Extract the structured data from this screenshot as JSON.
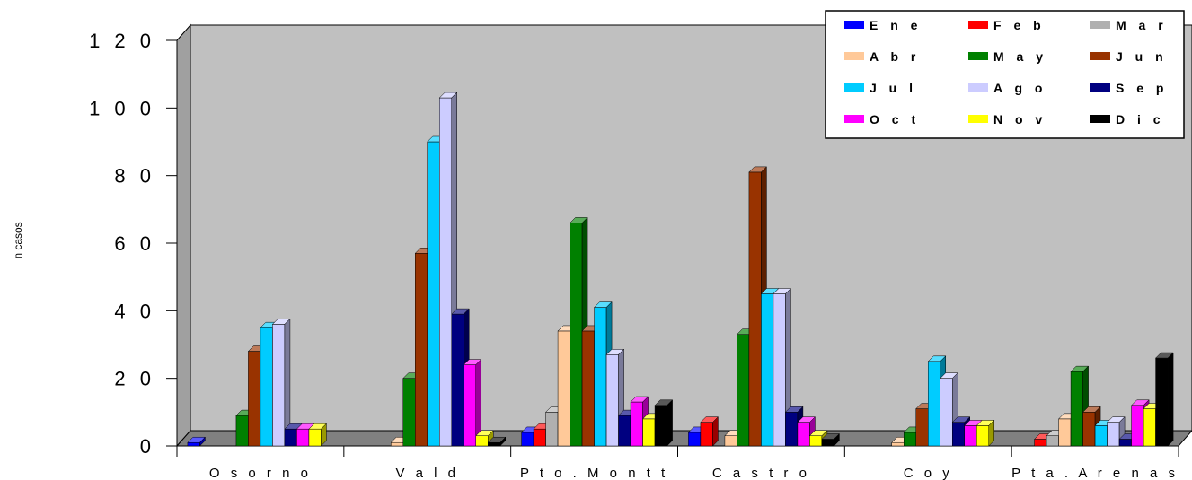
{
  "chart_data": {
    "type": "bar",
    "ylabel": "n casos",
    "xlabel": "",
    "title": "",
    "ylim": [
      0,
      120
    ],
    "yticks": [
      "0",
      "2 0",
      "4 0",
      "6 0",
      "8 0",
      "1 0 0",
      "1 2 0"
    ],
    "categories": [
      "O s o r n o",
      "V a l d",
      "P t o .  M o n t t",
      "C a s t r o",
      "C o y",
      "P t a .  A r e n a s"
    ],
    "legend_position": "top-right",
    "grid": false,
    "series": [
      {
        "name": "E n e",
        "color": "#0000FF",
        "values": [
          1,
          0,
          4,
          4,
          0,
          0
        ]
      },
      {
        "name": "F e b",
        "color": "#FF0000",
        "values": [
          0,
          0,
          5,
          7,
          0,
          2
        ]
      },
      {
        "name": "M a r",
        "color": "#B0B0B0",
        "values": [
          0,
          0,
          10,
          0,
          0,
          3
        ]
      },
      {
        "name": "A b r",
        "color": "#FFC999",
        "values": [
          0,
          1,
          34,
          3,
          1,
          8
        ]
      },
      {
        "name": "M a y",
        "color": "#008000",
        "values": [
          9,
          20,
          66,
          33,
          4,
          22
        ]
      },
      {
        "name": "J u n",
        "color": "#993300",
        "values": [
          28,
          57,
          34,
          81,
          11,
          10
        ]
      },
      {
        "name": "J u l",
        "color": "#00CCFF",
        "values": [
          35,
          90,
          41,
          45,
          25,
          6
        ]
      },
      {
        "name": "A g o",
        "color": "#CCCCFF",
        "values": [
          36,
          103,
          27,
          45,
          20,
          7
        ]
      },
      {
        "name": "S e p",
        "color": "#000080",
        "values": [
          5,
          39,
          9,
          10,
          7,
          2
        ]
      },
      {
        "name": "O c t",
        "color": "#FF00FF",
        "values": [
          5,
          24,
          13,
          7,
          6,
          12
        ]
      },
      {
        "name": "N o v",
        "color": "#FFFF00",
        "values": [
          5,
          3,
          8,
          3,
          6,
          11
        ]
      },
      {
        "name": "D i c",
        "color": "#000000",
        "values": [
          0,
          1,
          12,
          2,
          0,
          26
        ]
      }
    ]
  }
}
